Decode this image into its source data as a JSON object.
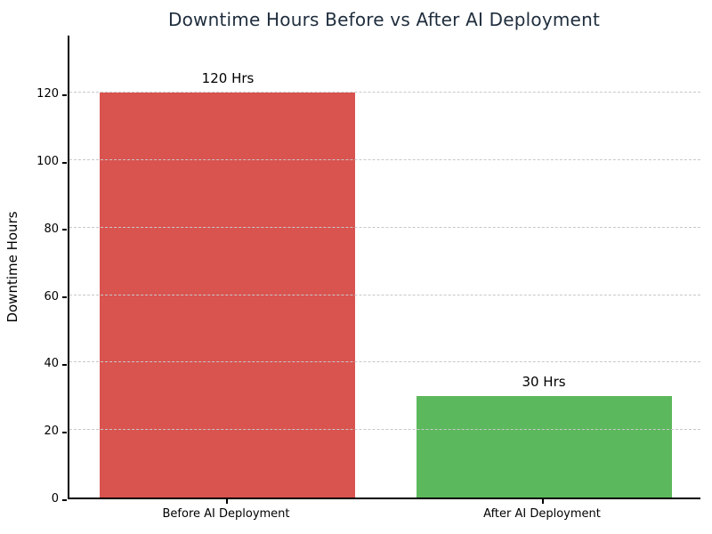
{
  "chart_data": {
    "type": "bar",
    "title": "Downtime Hours Before vs After AI Deployment",
    "title_color": "#1f2d3d",
    "xlabel": "",
    "ylabel": "Downtime Hours",
    "categories": [
      "Before AI Deployment",
      "After AI Deployment"
    ],
    "values": [
      120,
      30
    ],
    "bar_labels": [
      "120 Hrs",
      "30 Hrs"
    ],
    "bar_colors": [
      "#d9534f",
      "#5cb85c"
    ],
    "yticks": [
      0,
      20,
      40,
      60,
      80,
      100,
      120
    ],
    "ylim": [
      0,
      137.5
    ],
    "grid": "horizontal-dashed",
    "grid_color": "#c8c8c8",
    "legend": "none"
  }
}
